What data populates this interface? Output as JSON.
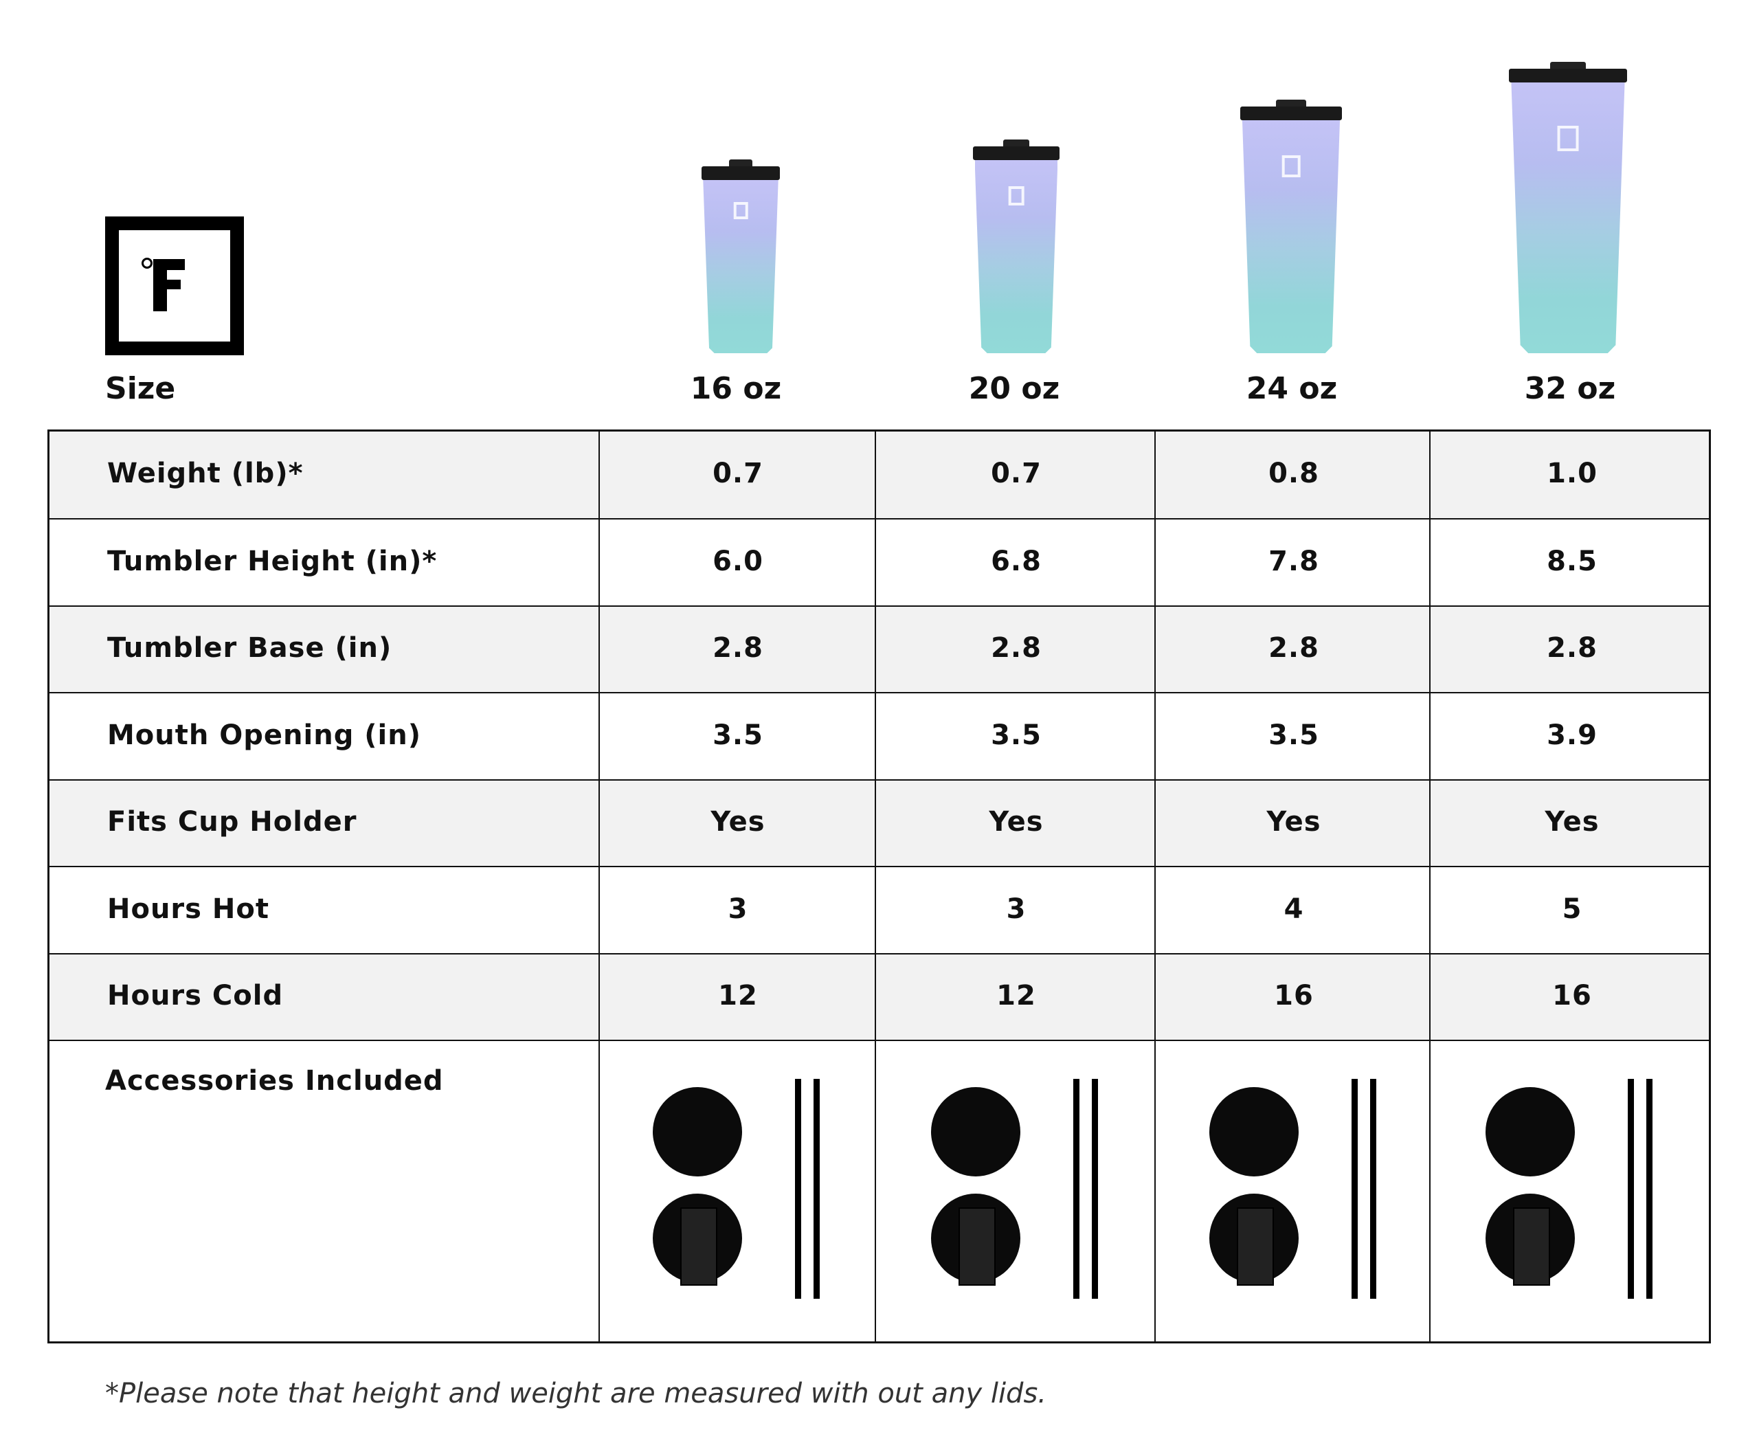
{
  "brand": {
    "logo_text": "°F"
  },
  "header": {
    "size_label": "Size",
    "sizes": [
      "16 oz",
      "20 oz",
      "24 oz",
      "32 oz"
    ]
  },
  "colors": {
    "tumbler_top": "#c4c3f6",
    "tumbler_bottom": "#92dad8",
    "shaded_row": "#f2f2f2"
  },
  "rows": [
    {
      "label": "Weight (lb)*",
      "values": [
        "0.7",
        "0.7",
        "0.8",
        "1.0"
      ]
    },
    {
      "label": "Tumbler Height (in)*",
      "values": [
        "6.0",
        "6.8",
        "7.8",
        "8.5"
      ]
    },
    {
      "label": "Tumbler Base (in)",
      "values": [
        "2.8",
        "2.8",
        "2.8",
        "2.8"
      ]
    },
    {
      "label": "Mouth Opening (in)",
      "values": [
        "3.5",
        "3.5",
        "3.5",
        "3.9"
      ]
    },
    {
      "label": "Fits Cup Holder",
      "values": [
        "Yes",
        "Yes",
        "Yes",
        "Yes"
      ]
    },
    {
      "label": "Hours Hot",
      "values": [
        "3",
        "3",
        "4",
        "5"
      ]
    },
    {
      "label": "Hours Cold",
      "values": [
        "12",
        "12",
        "16",
        "16"
      ]
    }
  ],
  "accessories": {
    "label": "Accessories Included",
    "items": [
      "straw-lid",
      "flip-lid",
      "straws"
    ]
  },
  "footnote": "*Please note that height and weight are measured with out any lids."
}
